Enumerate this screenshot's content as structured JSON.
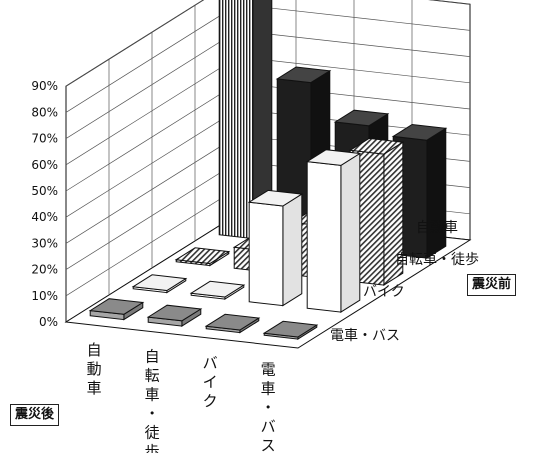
{
  "chart_data": {
    "type": "bar3d",
    "x_axis_title": "震災後",
    "y_axis_title": "震災前",
    "x_categories": [
      "自動車",
      "自転車・徒歩",
      "バイク",
      "電車・バス"
    ],
    "y_categories": [
      "自動車",
      "自転車・徒歩",
      "バイク",
      "電車・バス"
    ],
    "z_ticks": [
      "0%",
      "10%",
      "20%",
      "30%",
      "40%",
      "50%",
      "60%",
      "70%",
      "80%",
      "90%"
    ],
    "z_range": [
      0,
      90
    ],
    "values_percent": [
      [
        96,
        62,
        48,
        45
      ],
      [
        0,
        8,
        20,
        50
      ],
      [
        0,
        0,
        38,
        56
      ],
      [
        2,
        2,
        1,
        0
      ]
    ],
    "note": "values_percent[row by 震災前][column by 震災後]",
    "grid": true,
    "colors": {
      "jidosha_row": "#1e1e1e",
      "jitensha_row": "#ffffff",
      "bike_row": "#ffffff",
      "densha_row": "#a6a6a6",
      "wall": "#ffffff",
      "outline": "#111111"
    }
  }
}
